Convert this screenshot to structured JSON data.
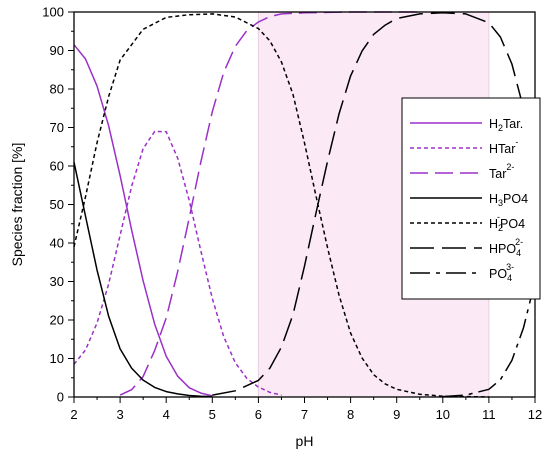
{
  "chart_data": {
    "type": "line",
    "xlabel": "pH",
    "ylabel": "Species fraction [%]",
    "xlim": [
      2,
      12
    ],
    "ylim": [
      0,
      100
    ],
    "xticks": [
      "2",
      "3",
      "4",
      "5",
      "6",
      "7",
      "8",
      "9",
      "10",
      "11",
      "12"
    ],
    "yticks": [
      "0",
      "10",
      "20",
      "30",
      "40",
      "50",
      "60",
      "70",
      "80",
      "90",
      "100"
    ],
    "grid": false,
    "legend_position": "right",
    "shaded_region": {
      "x_from": 6,
      "x_to": 11,
      "color": "#fbeaf6",
      "edge_color": "#e8cfe0"
    },
    "series": [
      {
        "name": "H₂Tar.",
        "legend": [
          "H",
          "2",
          "",
          "Tar."
        ],
        "color": "#9b30c8",
        "dash": "solid",
        "x": [
          2,
          2.25,
          2.5,
          2.75,
          3,
          3.25,
          3.5,
          3.75,
          4,
          4.25,
          4.5,
          4.75,
          5
        ],
        "y": [
          91.5,
          87.8,
          80.8,
          70.5,
          57.5,
          43.4,
          30.2,
          18.9,
          10.6,
          5.4,
          2.4,
          1.0,
          0.3
        ]
      },
      {
        "name": "HTar⁻",
        "legend": [
          "HTar",
          "",
          "-",
          ""
        ],
        "color": "#9b30c8",
        "dash": "short",
        "x": [
          2,
          2.25,
          2.5,
          2.75,
          3,
          3.25,
          3.5,
          3.75,
          4,
          4.25,
          4.5,
          4.75,
          5,
          5.25,
          5.5,
          5.75,
          6,
          6.25,
          6.5
        ],
        "y": [
          8.5,
          12.2,
          19.2,
          29.3,
          42.0,
          54.7,
          64.5,
          69.0,
          68.9,
          62.0,
          51.0,
          38.0,
          25.6,
          15.6,
          8.9,
          4.8,
          2.6,
          1.2,
          0.5
        ]
      },
      {
        "name": "Tar²⁻",
        "legend": [
          "Tar",
          "",
          "2-",
          ""
        ],
        "color": "#9b30c8",
        "dash": "long",
        "x": [
          3,
          3.25,
          3.5,
          3.75,
          4,
          4.25,
          4.5,
          4.75,
          5,
          5.25,
          5.5,
          5.75,
          6,
          6.25,
          6.5,
          7,
          7.5,
          8,
          8.5,
          9,
          9.5
        ],
        "y": [
          0.5,
          1.9,
          5.3,
          12.1,
          20.5,
          32.6,
          46.6,
          61.0,
          74.1,
          84.4,
          91.1,
          95.2,
          97.4,
          98.8,
          99.5,
          99.8,
          99.9,
          100,
          100,
          100,
          100
        ]
      },
      {
        "name": "H₃PO₄",
        "legend": [
          "H",
          "3",
          "",
          "PO4"
        ],
        "color": "#000000",
        "dash": "solid",
        "x": [
          2,
          2.25,
          2.5,
          2.75,
          3,
          3.25,
          3.5,
          3.75,
          4,
          4.25,
          4.5,
          4.75,
          5
        ],
        "y": [
          61.0,
          47.0,
          33.0,
          21.0,
          12.5,
          7.5,
          4.4,
          2.5,
          1.4,
          0.8,
          0.4,
          0.2,
          0.1
        ]
      },
      {
        "name": "H₂PO₄⁻",
        "legend": [
          "H",
          "2",
          "-",
          "PO4"
        ],
        "color": "#000000",
        "dash": "short",
        "x": [
          2,
          2.25,
          2.5,
          2.75,
          3,
          3.5,
          4,
          4.5,
          5,
          5.5,
          6,
          6.25,
          6.5,
          6.75,
          7,
          7.25,
          7.5,
          7.75,
          8,
          8.25,
          8.5,
          8.75,
          9,
          9.5,
          10,
          10.5,
          11
        ],
        "y": [
          39.0,
          52.0,
          66.0,
          78.0,
          87.5,
          95.5,
          98.6,
          99.3,
          99.5,
          98.7,
          95.7,
          92.5,
          87.0,
          78.6,
          66.0,
          52.2,
          38.7,
          26.4,
          16.6,
          10.1,
          5.8,
          3.4,
          2.0,
          0.7,
          0.2,
          0.1,
          0
        ]
      },
      {
        "name": "HPO₄²⁻",
        "legend": [
          "HPO",
          "4",
          "2-",
          ""
        ],
        "color": "#000000",
        "dash": "longer",
        "x": [
          5,
          5.5,
          6,
          6.25,
          6.5,
          6.75,
          7,
          7.25,
          7.5,
          7.75,
          8,
          8.25,
          8.5,
          8.75,
          9,
          9.5,
          10,
          10.5,
          11,
          11.25,
          11.5,
          11.75,
          12
        ],
        "y": [
          0.5,
          1.6,
          4.3,
          7.5,
          13.0,
          21.4,
          34.0,
          47.8,
          61.3,
          73.6,
          83.4,
          89.9,
          94.2,
          96.6,
          98.3,
          99.5,
          99.8,
          99.5,
          97.2,
          93.5,
          86.5,
          75.0,
          60.0
        ]
      },
      {
        "name": "PO₄³⁻",
        "legend": [
          "PO",
          "4",
          "3-",
          ""
        ],
        "color": "#000000",
        "dash": "dashdot",
        "x": [
          10,
          10.5,
          11,
          11.25,
          11.5,
          11.75,
          12
        ],
        "y": [
          0.1,
          0.5,
          2.0,
          4.5,
          9.5,
          18.0,
          30.0
        ]
      }
    ]
  }
}
